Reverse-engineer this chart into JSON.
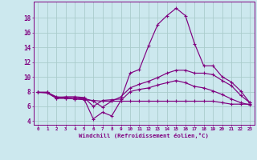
{
  "xlabel": "Windchill (Refroidissement éolien,°C)",
  "background_color": "#cce8ee",
  "line_color": "#800080",
  "grid_color": "#aacccc",
  "xlim": [
    -0.5,
    23.5
  ],
  "ylim": [
    3.5,
    20.2
  ],
  "yticks": [
    4,
    6,
    8,
    10,
    12,
    14,
    16,
    18
  ],
  "xticks": [
    0,
    1,
    2,
    3,
    4,
    5,
    6,
    7,
    8,
    9,
    10,
    11,
    12,
    13,
    14,
    15,
    16,
    17,
    18,
    19,
    20,
    21,
    22,
    23
  ],
  "series": [
    {
      "x": [
        0,
        1,
        2,
        3,
        4,
        5,
        6,
        7,
        8,
        9,
        10,
        11,
        12,
        13,
        14,
        15,
        16,
        17,
        18,
        19,
        20,
        21,
        22,
        23
      ],
      "y": [
        7.9,
        7.9,
        7.2,
        7.3,
        7.3,
        7.2,
        6.0,
        6.8,
        6.9,
        7.0,
        10.5,
        11.0,
        14.2,
        17.1,
        18.3,
        19.3,
        18.3,
        14.5,
        11.5,
        11.5,
        10.0,
        9.3,
        8.1,
        6.5
      ]
    },
    {
      "x": [
        0,
        1,
        2,
        3,
        4,
        5,
        6,
        7,
        8,
        9,
        10,
        11,
        12,
        13,
        14,
        15,
        16,
        17,
        18,
        19,
        20,
        21,
        22,
        23
      ],
      "y": [
        7.9,
        7.9,
        7.3,
        7.2,
        7.2,
        7.1,
        6.7,
        5.9,
        6.7,
        7.3,
        8.5,
        9.0,
        9.4,
        9.9,
        10.5,
        10.9,
        10.9,
        10.5,
        10.5,
        10.3,
        9.5,
        8.8,
        7.5,
        6.5
      ]
    },
    {
      "x": [
        0,
        1,
        2,
        3,
        4,
        5,
        6,
        7,
        8,
        9,
        10,
        11,
        12,
        13,
        14,
        15,
        16,
        17,
        18,
        19,
        20,
        21,
        22,
        23
      ],
      "y": [
        7.9,
        7.9,
        7.1,
        7.1,
        7.0,
        7.0,
        4.3,
        5.2,
        4.7,
        6.8,
        8.0,
        8.3,
        8.5,
        8.9,
        9.2,
        9.5,
        9.2,
        8.7,
        8.5,
        8.1,
        7.6,
        7.0,
        6.5,
        6.2
      ]
    },
    {
      "x": [
        0,
        1,
        2,
        3,
        4,
        5,
        6,
        7,
        8,
        9,
        10,
        11,
        12,
        13,
        14,
        15,
        16,
        17,
        18,
        19,
        20,
        21,
        22,
        23
      ],
      "y": [
        7.9,
        7.8,
        7.1,
        7.1,
        7.0,
        6.9,
        6.8,
        6.7,
        6.7,
        6.7,
        6.7,
        6.7,
        6.7,
        6.7,
        6.7,
        6.7,
        6.7,
        6.7,
        6.7,
        6.7,
        6.5,
        6.3,
        6.3,
        6.3
      ]
    }
  ]
}
